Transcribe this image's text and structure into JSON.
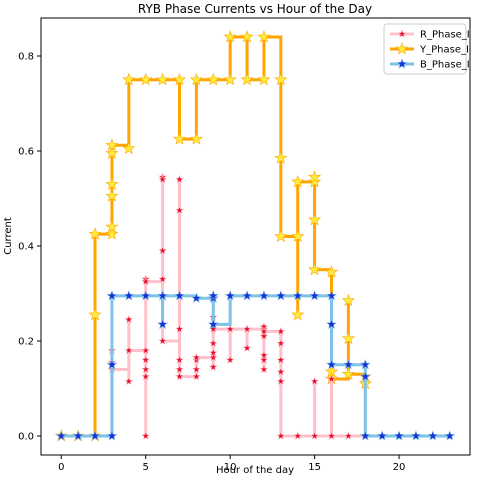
{
  "chart_data": {
    "type": "line",
    "title": "RYB Phase Currents vs Hour of the Day",
    "xlabel": "Hour of the day",
    "ylabel": "Current",
    "xlim": [
      -1.2,
      24.2
    ],
    "ylim": [
      -0.04,
      0.88
    ],
    "xticks": [
      0,
      5,
      10,
      15,
      20
    ],
    "yticks": [
      0.0,
      0.2,
      0.4,
      0.6,
      0.8
    ],
    "ytick_labels": [
      "0.0",
      "0.2",
      "0.4",
      "0.6",
      "0.8"
    ],
    "grid": false,
    "legend_position": "top-right",
    "drawstyle": "steps-post",
    "series": [
      {
        "name": "R_Phase_I",
        "color": "#ffc0cb",
        "marker_color": "#e8112d",
        "line_width": 3,
        "marker_size": 4,
        "points": [
          [
            0,
            0
          ],
          [
            1,
            0
          ],
          [
            2,
            0
          ],
          [
            3,
            0
          ],
          [
            3,
            0.18
          ],
          [
            3,
            0.155
          ],
          [
            3,
            0.14
          ],
          [
            4,
            0.18
          ],
          [
            4,
            0.115
          ],
          [
            4,
            0.245
          ],
          [
            4,
            0.18
          ],
          [
            5,
            0.18
          ],
          [
            5,
            0.16
          ],
          [
            5,
            0.14
          ],
          [
            5,
            0.125
          ],
          [
            5,
            0
          ],
          [
            5,
            0.33
          ],
          [
            5,
            0.33
          ],
          [
            5,
            0.325
          ],
          [
            6,
            0.33
          ],
          [
            6,
            0.39
          ],
          [
            6,
            0.545
          ],
          [
            6,
            0.54
          ],
          [
            6,
            0.2
          ],
          [
            7,
            0.54
          ],
          [
            7,
            0.475
          ],
          [
            7,
            0.225
          ],
          [
            7,
            0.16
          ],
          [
            7,
            0.14
          ],
          [
            7,
            0.125
          ],
          [
            8,
            0.16
          ],
          [
            8,
            0.125
          ],
          [
            8,
            0.14
          ],
          [
            8,
            0.165
          ],
          [
            9,
            0.165
          ],
          [
            9,
            0.195
          ],
          [
            9,
            0.175
          ],
          [
            9,
            0.145
          ],
          [
            9,
            0.25
          ],
          [
            9,
            0.225
          ],
          [
            10,
            0.225
          ],
          [
            10,
            0.16
          ],
          [
            10,
            0.225
          ],
          [
            11,
            0.225
          ],
          [
            11,
            0.185
          ],
          [
            11,
            0.225
          ],
          [
            12,
            0.225
          ],
          [
            12,
            0.21
          ],
          [
            12,
            0.23
          ],
          [
            12,
            0.16
          ],
          [
            12,
            0.14
          ],
          [
            12,
            0.17
          ],
          [
            12,
            0.22
          ],
          [
            13,
            0.22
          ],
          [
            13,
            0.195
          ],
          [
            13,
            0.16
          ],
          [
            13,
            0.135
          ],
          [
            13,
            0.115
          ],
          [
            13,
            0
          ],
          [
            14,
            0
          ],
          [
            15,
            0
          ],
          [
            15,
            0.115
          ],
          [
            15,
            0
          ],
          [
            16,
            0
          ],
          [
            16,
            0.12
          ],
          [
            16,
            0
          ],
          [
            17,
            0
          ],
          [
            18,
            0
          ],
          [
            19,
            0
          ],
          [
            20,
            0
          ],
          [
            21,
            0
          ],
          [
            22,
            0
          ],
          [
            23,
            0
          ]
        ]
      },
      {
        "name": "Y_Phase_I",
        "color": "#ffa500",
        "marker_color": "#ffeb3b",
        "line_width": 3,
        "marker_size": 6,
        "points": [
          [
            0,
            0
          ],
          [
            1,
            0
          ],
          [
            2,
            0
          ],
          [
            2,
            0.255
          ],
          [
            2,
            0.425
          ],
          [
            3,
            0.425
          ],
          [
            3,
            0.44
          ],
          [
            3,
            0.505
          ],
          [
            3,
            0.53
          ],
          [
            3,
            0.595
          ],
          [
            3,
            0.612
          ],
          [
            4,
            0.605
          ],
          [
            4,
            0.75
          ],
          [
            5,
            0.75
          ],
          [
            6,
            0.75
          ],
          [
            7,
            0.75
          ],
          [
            7,
            0.625
          ],
          [
            8,
            0.625
          ],
          [
            8,
            0.75
          ],
          [
            9,
            0.75
          ],
          [
            10,
            0.75
          ],
          [
            10,
            0.84
          ],
          [
            11,
            0.84
          ],
          [
            11,
            0.75
          ],
          [
            12,
            0.75
          ],
          [
            12,
            0.84
          ],
          [
            13,
            0.75
          ],
          [
            13,
            0.585
          ],
          [
            13,
            0.42
          ],
          [
            14,
            0.42
          ],
          [
            14,
            0.255
          ],
          [
            14,
            0.535
          ],
          [
            15,
            0.535
          ],
          [
            15,
            0.545
          ],
          [
            15,
            0.455
          ],
          [
            15,
            0.35
          ],
          [
            16,
            0.345
          ],
          [
            16,
            0.135
          ],
          [
            16,
            0.12
          ],
          [
            17,
            0.285
          ],
          [
            17,
            0.205
          ],
          [
            17,
            0.13
          ],
          [
            18,
            0.125
          ],
          [
            18,
            0.11
          ]
        ]
      },
      {
        "name": "B_Phase_I",
        "color": "#7dc3e8",
        "marker_color": "#1a2fd6",
        "line_width": 3,
        "marker_size": 5,
        "points": [
          [
            0,
            0
          ],
          [
            1,
            0
          ],
          [
            2,
            0
          ],
          [
            3,
            0
          ],
          [
            3,
            0.15
          ],
          [
            3,
            0.295
          ],
          [
            4,
            0.295
          ],
          [
            5,
            0.295
          ],
          [
            6,
            0.295
          ],
          [
            6,
            0.235
          ],
          [
            6,
            0.295
          ],
          [
            7,
            0.295
          ],
          [
            8,
            0.29
          ],
          [
            9,
            0.29
          ],
          [
            9,
            0.295
          ],
          [
            9,
            0.235
          ],
          [
            10,
            0.295
          ],
          [
            11,
            0.295
          ],
          [
            12,
            0.295
          ],
          [
            13,
            0.295
          ],
          [
            14,
            0.295
          ],
          [
            15,
            0.295
          ],
          [
            16,
            0.295
          ],
          [
            16,
            0.235
          ],
          [
            16,
            0.15
          ],
          [
            17,
            0.15
          ],
          [
            18,
            0.15
          ],
          [
            18,
            0.125
          ],
          [
            18,
            0
          ],
          [
            19,
            0
          ],
          [
            20,
            0
          ],
          [
            21,
            0
          ],
          [
            22,
            0
          ],
          [
            23,
            0
          ]
        ]
      }
    ]
  }
}
